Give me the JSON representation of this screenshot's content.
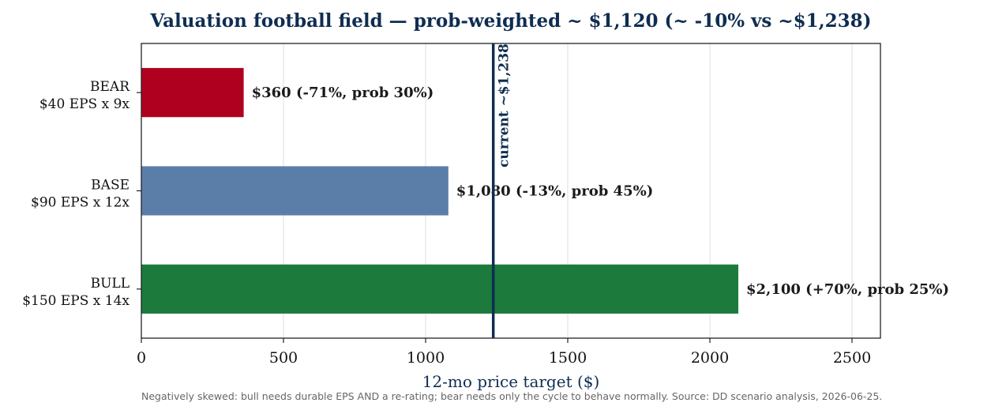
{
  "chart_data": {
    "type": "bar",
    "orientation": "horizontal",
    "title": "Valuation football field — prob-weighted ~ $1,120 (~ -10% vs ~$1,238)",
    "xlabel": "12-mo price target ($)",
    "xlim": [
      0,
      2600
    ],
    "xticks": [
      0,
      500,
      1000,
      1500,
      2000,
      2500
    ],
    "grid": "vertical",
    "categories": [
      {
        "name": "BEAR",
        "sub": "$40 EPS x 9x",
        "value": 360,
        "color": "#b00020",
        "label": "$360  (-71%, prob 30%)"
      },
      {
        "name": "BASE",
        "sub": "$90 EPS x 12x",
        "value": 1080,
        "color": "#5b7ea9",
        "label": "$1,080  (-13%, prob 45%)"
      },
      {
        "name": "BULL",
        "sub": "$150 EPS x 14x",
        "value": 2100,
        "color": "#1b7a3c",
        "label": "$2,100  (+70%, prob 25%)"
      }
    ],
    "reference_line": {
      "value": 1238,
      "label": "current ~$1,238",
      "color": "#0f2d52"
    },
    "footnote": "Negatively skewed: bull needs durable EPS AND a re-rating; bear needs only the cycle to behave normally. Source: DD scenario analysis, 2026-06-25."
  }
}
